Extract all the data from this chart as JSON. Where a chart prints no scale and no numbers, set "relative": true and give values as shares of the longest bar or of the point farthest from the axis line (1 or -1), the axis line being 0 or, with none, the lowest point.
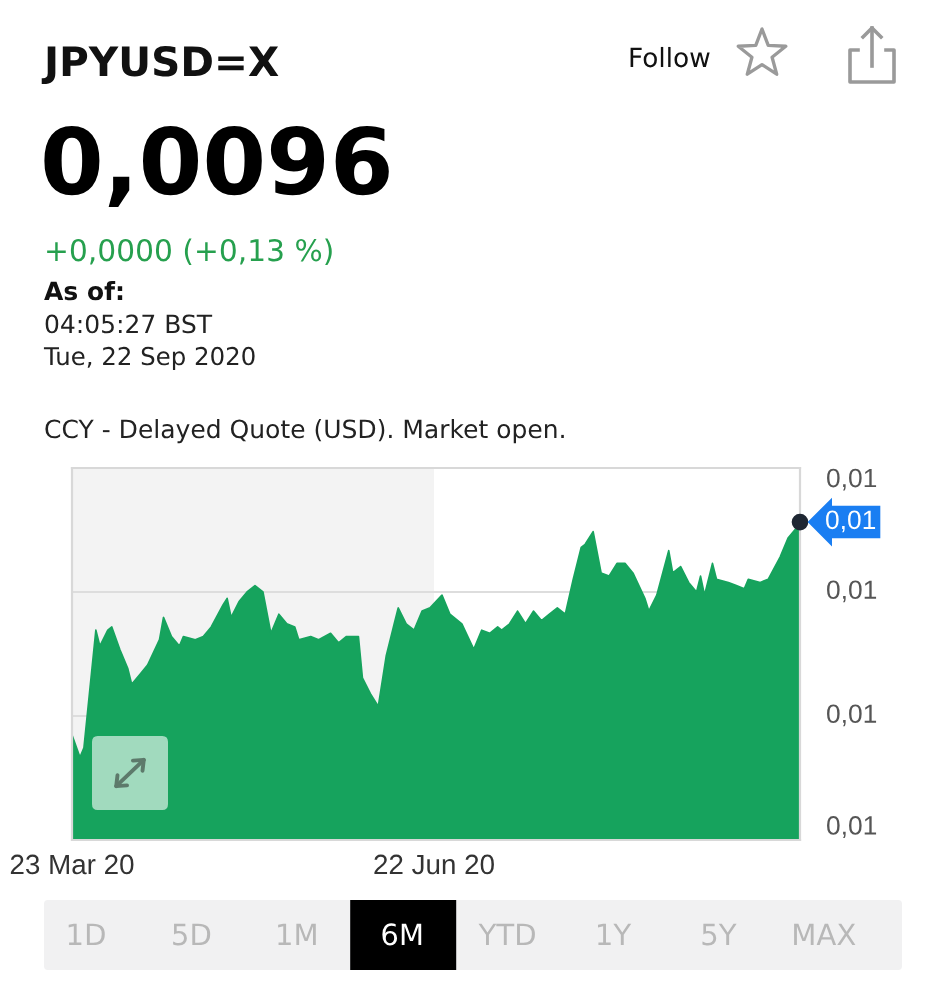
{
  "chart_data": {
    "type": "area",
    "title": "JPYUSD=X",
    "subtitle": "0,0096",
    "annotations": [
      "Follow",
      "+0,0000 (+0,13 %)",
      "As of:",
      "04:05:27 BST",
      "Tue, 22 Sep 2020",
      "CCY - Delayed Quote (USD). Market open.",
      "0,01",
      "0,01",
      "0,01",
      "0,01",
      "1D",
      "5D",
      "1M",
      "6M",
      "YTD",
      "1Y",
      "5Y",
      "MAX",
      "0,01"
    ],
    "x": [
      "2020-03-23",
      "2020-03-25",
      "2020-03-26",
      "2020-03-29",
      "2020-03-30",
      "2020-04-01",
      "2020-04-02",
      "2020-04-04",
      "2020-04-06",
      "2020-04-07",
      "2020-04-09",
      "2020-04-11",
      "2020-04-14",
      "2020-04-15",
      "2020-04-17",
      "2020-04-19",
      "2020-04-20",
      "2020-04-23",
      "2020-04-25",
      "2020-04-27",
      "2020-04-30",
      "2020-05-01",
      "2020-05-02",
      "2020-05-04",
      "2020-05-06",
      "2020-05-08",
      "2020-05-10",
      "2020-05-12",
      "2020-05-14",
      "2020-05-16",
      "2020-05-18",
      "2020-05-19",
      "2020-05-22",
      "2020-05-24",
      "2020-05-27",
      "2020-05-29",
      "2020-05-31",
      "2020-06-03",
      "2020-06-04",
      "2020-06-06",
      "2020-06-08",
      "2020-06-10",
      "2020-06-12",
      "2020-06-13",
      "2020-06-15",
      "2020-06-17",
      "2020-06-19",
      "2020-06-21",
      "2020-06-24",
      "2020-06-26",
      "2020-06-29",
      "2020-07-02",
      "2020-07-04",
      "2020-07-06",
      "2020-07-08",
      "2020-07-09",
      "2020-07-11",
      "2020-07-13",
      "2020-07-15",
      "2020-07-17",
      "2020-07-19",
      "2020-07-21",
      "2020-07-23",
      "2020-07-25",
      "2020-07-27",
      "2020-07-29",
      "2020-07-30",
      "2020-08-01",
      "2020-08-03",
      "2020-08-05",
      "2020-08-07",
      "2020-08-09",
      "2020-08-11",
      "2020-08-14",
      "2020-08-15",
      "2020-08-17",
      "2020-08-20",
      "2020-08-21",
      "2020-08-23",
      "2020-08-25",
      "2020-08-27",
      "2020-08-28",
      "2020-08-29",
      "2020-08-31",
      "2020-09-01",
      "2020-09-04",
      "2020-09-06",
      "2020-09-08",
      "2020-09-09",
      "2020-09-12",
      "2020-09-14",
      "2020-09-17",
      "2020-09-19",
      "2020-09-21",
      "2020-09-22"
    ],
    "values": [
      0.33,
      0.26,
      0.29,
      0.66,
      0.61,
      0.66,
      0.67,
      0.6,
      0.54,
      0.49,
      0.52,
      0.55,
      0.63,
      0.7,
      0.64,
      0.61,
      0.64,
      0.63,
      0.64,
      0.67,
      0.74,
      0.76,
      0.7,
      0.75,
      0.78,
      0.8,
      0.78,
      0.65,
      0.71,
      0.68,
      0.67,
      0.63,
      0.64,
      0.63,
      0.65,
      0.62,
      0.64,
      0.64,
      0.51,
      0.46,
      0.42,
      0.58,
      0.68,
      0.73,
      0.68,
      0.66,
      0.72,
      0.73,
      0.77,
      0.71,
      0.68,
      0.6,
      0.66,
      0.65,
      0.67,
      0.66,
      0.68,
      0.72,
      0.68,
      0.72,
      0.69,
      0.71,
      0.73,
      0.71,
      0.82,
      0.92,
      0.93,
      0.97,
      0.84,
      0.83,
      0.87,
      0.87,
      0.84,
      0.76,
      0.72,
      0.77,
      0.91,
      0.84,
      0.86,
      0.81,
      0.78,
      0.83,
      0.77,
      0.87,
      0.82,
      0.81,
      0.8,
      0.79,
      0.82,
      0.81,
      0.82,
      0.89,
      0.95,
      0.98,
      1.0
    ],
    "color": "#16a35d",
    "relative": true,
    "xlim": [
      "2020-03-23",
      "2020-09-22"
    ],
    "xticks": [
      {
        "value": "2020-03-23",
        "label": "23 Mar 20"
      },
      {
        "value": "2020-06-22",
        "label": "22 Jun 20"
      }
    ],
    "bands": [
      {
        "axis": "x",
        "from": "2020-03-23",
        "to": "2020-06-22",
        "color": "#f3f3f3"
      }
    ],
    "ref_lines": [
      {
        "axis": "y",
        "value": 0.78,
        "color": "#dddddd"
      },
      {
        "axis": "y",
        "value": 0.39,
        "color": "#dddddd"
      }
    ]
  }
}
